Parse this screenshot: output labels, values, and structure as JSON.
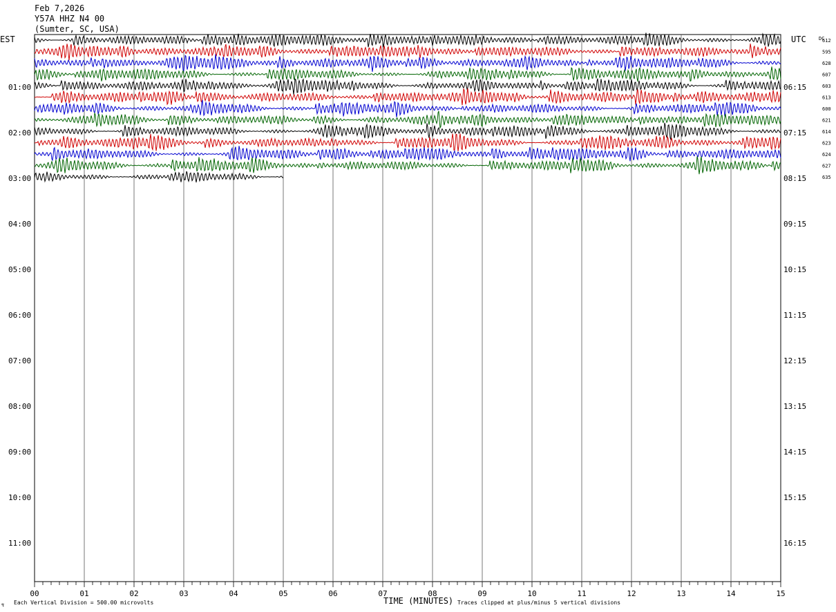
{
  "header": {
    "date": "Feb 7,2026",
    "station": "Y57A HHZ N4 00",
    "location": "(Sumter, SC, USA)"
  },
  "axes": {
    "left_label": "EST",
    "right_label": "UTC",
    "dc_label": "DC",
    "x_title": "TIME (MINUTES)",
    "x_ticks": [
      "00",
      "01",
      "02",
      "03",
      "04",
      "05",
      "06",
      "07",
      "08",
      "09",
      "10",
      "11",
      "12",
      "13",
      "14",
      "15"
    ],
    "left_times": [
      "01:00",
      "02:00",
      "03:00",
      "04:00",
      "05:00",
      "06:00",
      "07:00",
      "08:00",
      "09:00",
      "10:00",
      "11:00"
    ],
    "right_times": [
      "06:15",
      "07:15",
      "08:15",
      "09:15",
      "10:15",
      "11:15",
      "12:15",
      "13:15",
      "14:15",
      "15:15",
      "16:15"
    ]
  },
  "footer": {
    "scale_note": "Each Vertical Division =  500.00 microvolts",
    "clip_note": "Traces clipped at plus/minus 5 vertical divisions"
  },
  "chart_data": {
    "type": "line",
    "title": "Y57A HHZ N4 00",
    "xlabel": "TIME (MINUTES)",
    "xlim": [
      0,
      15
    ],
    "rows_per_hour": 4,
    "minutes_per_row": 15,
    "trace_colors": [
      "#000000",
      "#d00000",
      "#0000d0",
      "#006400"
    ],
    "series": [
      {
        "row": 0,
        "start_minute": 0,
        "end_minute": 15,
        "dc": "612",
        "color": "#000000"
      },
      {
        "row": 1,
        "start_minute": 0,
        "end_minute": 15,
        "dc": "595",
        "color": "#d00000"
      },
      {
        "row": 2,
        "start_minute": 0,
        "end_minute": 15,
        "dc": "628",
        "color": "#0000d0"
      },
      {
        "row": 3,
        "start_minute": 0,
        "end_minute": 15,
        "dc": "607",
        "color": "#006400"
      },
      {
        "row": 4,
        "start_minute": 0,
        "end_minute": 15,
        "dc": "603",
        "color": "#000000"
      },
      {
        "row": 5,
        "start_minute": 0,
        "end_minute": 15,
        "dc": "613",
        "color": "#d00000"
      },
      {
        "row": 6,
        "start_minute": 0,
        "end_minute": 15,
        "dc": "600",
        "color": "#0000d0"
      },
      {
        "row": 7,
        "start_minute": 0,
        "end_minute": 15,
        "dc": "621",
        "color": "#006400"
      },
      {
        "row": 8,
        "start_minute": 0,
        "end_minute": 15,
        "dc": "614",
        "color": "#000000"
      },
      {
        "row": 9,
        "start_minute": 0,
        "end_minute": 15,
        "dc": "623",
        "color": "#d00000"
      },
      {
        "row": 10,
        "start_minute": 0,
        "end_minute": 15,
        "dc": "624",
        "color": "#0000d0"
      },
      {
        "row": 11,
        "start_minute": 0,
        "end_minute": 15,
        "dc": "627",
        "color": "#006400"
      },
      {
        "row": 12,
        "start_minute": 0,
        "end_minute": 5,
        "dc": "635",
        "color": "#000000"
      }
    ]
  }
}
